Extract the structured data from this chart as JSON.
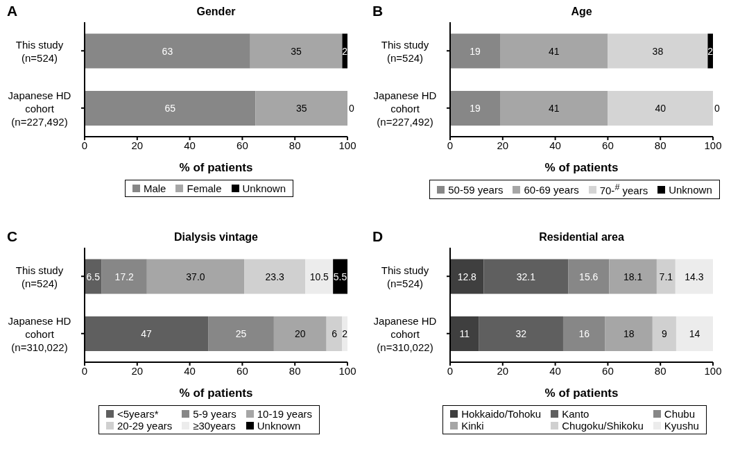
{
  "chart_data": [
    {
      "type": "bar",
      "orientation": "horizontal",
      "stacked": true,
      "title": "Gender",
      "xlabel": "% of patients",
      "annotations": [
        "A"
      ],
      "categories": [
        "This study (n=524)",
        "Japanese HD cohort (n=227,492)"
      ],
      "xlim": [
        0,
        100
      ],
      "xticks": [
        0,
        20,
        40,
        60,
        80,
        100
      ],
      "grid": false,
      "legend": "bottom",
      "series": [
        {
          "name": "Male",
          "color": "#878787",
          "values": [
            63,
            65
          ],
          "value_labels": [
            "63",
            "65"
          ]
        },
        {
          "name": "Female",
          "color": "#a6a6a6",
          "values": [
            35,
            35
          ],
          "value_labels": [
            "35",
            "35"
          ]
        },
        {
          "name": "Unknown",
          "color": "#000000",
          "values": [
            2,
            0
          ],
          "value_labels": [
            "2",
            "0"
          ]
        }
      ]
    },
    {
      "type": "bar",
      "orientation": "horizontal",
      "stacked": true,
      "title": "Age",
      "xlabel": "% of patients",
      "annotations": [
        "B"
      ],
      "categories": [
        "This study (n=524)",
        "Japanese HD cohort (n=227,492)"
      ],
      "xlim": [
        0,
        100
      ],
      "xticks": [
        0,
        20,
        40,
        60,
        80,
        100
      ],
      "grid": false,
      "legend": "bottom",
      "series": [
        {
          "name": "50-59 years",
          "color": "#878787",
          "values": [
            19,
            19
          ],
          "value_labels": [
            "19",
            "19"
          ]
        },
        {
          "name": "60-69 years",
          "color": "#a6a6a6",
          "values": [
            41,
            41
          ],
          "value_labels": [
            "41",
            "41"
          ]
        },
        {
          "name": "70-$^{#}$ years",
          "color": "#d4d4d4",
          "values": [
            38,
            40
          ],
          "value_labels": [
            "38",
            "40"
          ]
        },
        {
          "name": "Unknown",
          "color": "#000000",
          "values": [
            2,
            0
          ],
          "value_labels": [
            "2",
            "0"
          ]
        }
      ]
    },
    {
      "type": "bar",
      "orientation": "horizontal",
      "stacked": true,
      "title": "Dialysis vintage",
      "xlabel": "% of patients",
      "annotations": [
        "C"
      ],
      "categories": [
        "This study (n=524)",
        "Japanese HD cohort (n=310,022)"
      ],
      "xlim": [
        0,
        100
      ],
      "xticks": [
        0,
        20,
        40,
        60,
        80,
        100
      ],
      "grid": false,
      "legend": "bottom",
      "series": [
        {
          "name": "<5years*",
          "color": "#5f5f5f",
          "values": [
            6.5,
            47
          ],
          "value_labels": [
            "6.5",
            "47"
          ]
        },
        {
          "name": "5-9 years",
          "color": "#878787",
          "values": [
            17.2,
            25
          ],
          "value_labels": [
            "17.2",
            "25"
          ]
        },
        {
          "name": "10-19 years",
          "color": "#a6a6a6",
          "values": [
            37.0,
            20
          ],
          "value_labels": [
            "37.0",
            "20"
          ]
        },
        {
          "name": "20-29 years",
          "color": "#d0d0d0",
          "values": [
            23.3,
            6
          ],
          "value_labels": [
            "23.3",
            "6"
          ]
        },
        {
          "name": "≥30years",
          "color": "#ececec",
          "values": [
            10.5,
            2
          ],
          "value_labels": [
            "10.5",
            "2"
          ]
        },
        {
          "name": "Unknown",
          "color": "#000000",
          "values": [
            5.5,
            null
          ],
          "value_labels": [
            "5.5",
            null
          ]
        }
      ]
    },
    {
      "type": "bar",
      "orientation": "horizontal",
      "stacked": true,
      "title": "Residential area",
      "xlabel": "% of patients",
      "annotations": [
        "D"
      ],
      "categories": [
        "This study (n=524)",
        "Japanese HD cohort (n=310,022)"
      ],
      "xlim": [
        0,
        100
      ],
      "xticks": [
        0,
        20,
        40,
        60,
        80,
        100
      ],
      "grid": false,
      "legend": "bottom",
      "series": [
        {
          "name": "Hokkaido/Tohoku",
          "color": "#3f3f3f",
          "values": [
            12.8,
            11
          ],
          "value_labels": [
            "12.8",
            "11"
          ]
        },
        {
          "name": "Kanto",
          "color": "#5f5f5f",
          "values": [
            32.1,
            32
          ],
          "value_labels": [
            "32.1",
            "32"
          ]
        },
        {
          "name": "Chubu",
          "color": "#878787",
          "values": [
            15.6,
            16
          ],
          "value_labels": [
            "15.6",
            "16"
          ]
        },
        {
          "name": "Kinki",
          "color": "#a6a6a6",
          "values": [
            18.1,
            18
          ],
          "value_labels": [
            "18.1",
            "18"
          ]
        },
        {
          "name": "Chugoku/Shikoku",
          "color": "#d0d0d0",
          "values": [
            7.1,
            9
          ],
          "value_labels": [
            "7.1",
            "9"
          ]
        },
        {
          "name": "Kyushu",
          "color": "#ececec",
          "values": [
            14.3,
            14
          ],
          "value_labels": [
            "14.3",
            "14"
          ]
        }
      ]
    }
  ]
}
